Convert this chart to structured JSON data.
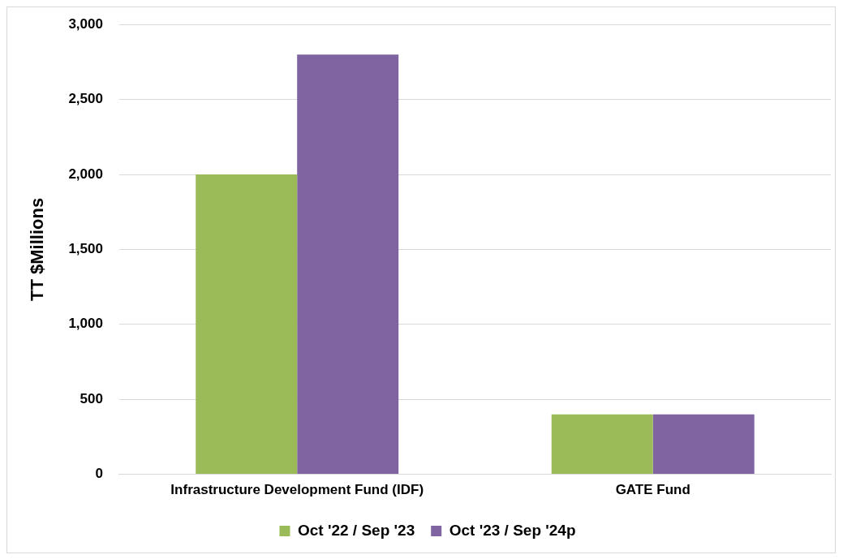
{
  "chart_data": {
    "type": "bar",
    "ylabel": "TT $Millions",
    "categories": [
      "Infrastructure Development Fund (IDF)",
      "GATE Fund"
    ],
    "series": [
      {
        "name": "Oct '22 / Sep '23",
        "color": "#9bbb59",
        "values": [
          2000,
          400
        ]
      },
      {
        "name": "Oct '23 / Sep '24p",
        "color": "#8064a2",
        "values": [
          2800,
          400
        ]
      }
    ],
    "ylim": [
      0,
      3000
    ],
    "yticks": [
      {
        "value": 0,
        "label": "0"
      },
      {
        "value": 500,
        "label": "500"
      },
      {
        "value": 1000,
        "label": "1,000"
      },
      {
        "value": 1500,
        "label": "1,500"
      },
      {
        "value": 2000,
        "label": "2,000"
      },
      {
        "value": 2500,
        "label": "2,500"
      },
      {
        "value": 3000,
        "label": "3,000"
      }
    ],
    "grid": "y",
    "legend": "bottom"
  }
}
